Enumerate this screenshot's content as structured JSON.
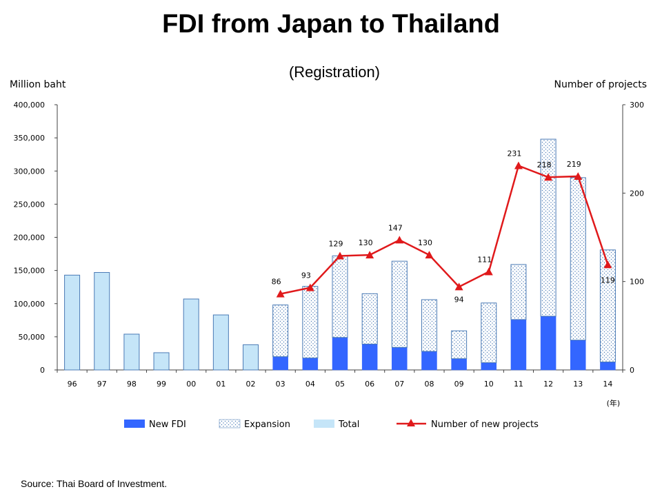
{
  "chart_data": {
    "type": "bar",
    "title": "FDI from Japan to Thailand",
    "subtitle": "(Registration)",
    "ylabel_left": "Million baht",
    "ylabel_right": "Number of projects",
    "xlabel": "(年)",
    "categories": [
      "96",
      "97",
      "98",
      "99",
      "00",
      "01",
      "02",
      "03",
      "04",
      "05",
      "06",
      "07",
      "08",
      "09",
      "10",
      "11",
      "12",
      "13",
      "14"
    ],
    "ylim_left": [
      0,
      400000
    ],
    "ylim_right": [
      0,
      300
    ],
    "yticks_left": [
      "0",
      "50,000",
      "100,000",
      "150,000",
      "200,000",
      "250,000",
      "300,000",
      "350,000",
      "400,000"
    ],
    "yticks_right": [
      "0",
      "100",
      "200",
      "300"
    ],
    "series": [
      {
        "name": "New FDI",
        "kind": "bar",
        "color": "#3366ff",
        "values": [
          null,
          null,
          null,
          null,
          null,
          null,
          null,
          20000,
          18000,
          49000,
          39000,
          34000,
          28000,
          17000,
          11000,
          76000,
          81000,
          45000,
          12000
        ]
      },
      {
        "name": "Expansion",
        "kind": "bar-stacked",
        "pattern": "dotted",
        "values": [
          null,
          null,
          null,
          null,
          null,
          null,
          null,
          78000,
          108000,
          123000,
          76000,
          130000,
          78000,
          42000,
          90000,
          83000,
          267000,
          245000,
          169000
        ]
      },
      {
        "name": "Total",
        "kind": "bar",
        "color": "#c5e5f8",
        "values": [
          143000,
          147000,
          54000,
          26000,
          107000,
          83000,
          38000,
          98000,
          126000,
          172000,
          115000,
          164000,
          106000,
          59000,
          101000,
          159000,
          348000,
          290000,
          181000
        ]
      },
      {
        "name": "Number of new projects",
        "kind": "line",
        "axis": "right",
        "color": "#e0191b",
        "values": [
          null,
          null,
          null,
          null,
          null,
          null,
          null,
          86,
          93,
          129,
          130,
          147,
          130,
          94,
          111,
          231,
          218,
          219,
          119
        ],
        "labels": [
          "",
          "",
          "",
          "",
          "",
          "",
          "",
          "86",
          "93",
          "129",
          "130",
          "147",
          "130",
          "94",
          "111",
          "231",
          "218",
          "219",
          "119"
        ]
      }
    ],
    "legend": [
      "New FDI",
      "Expansion",
      "Total",
      "Number of new projects"
    ],
    "legend_position": "bottom",
    "grid": false
  },
  "source": "Source: Thai Board of Investment.",
  "colors": {
    "new_fdi": "#3366ff",
    "total": "#c5e5f8",
    "bar_edge": "#4a7ab5",
    "line": "#e0191b",
    "axis": "#404040"
  }
}
